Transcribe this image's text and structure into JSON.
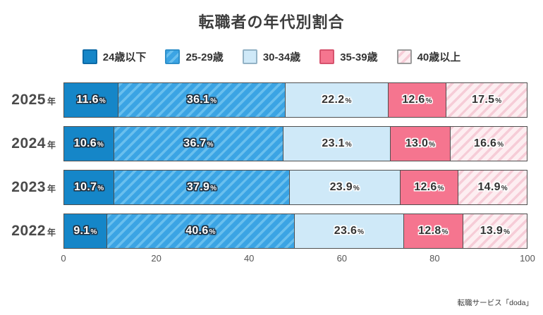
{
  "title": "転職者の年代別割合",
  "source": "転職サービス「doda」",
  "colors": {
    "bar_border": "#4f4f4f",
    "label_outline_dark": "#20303f",
    "label_outline_light": "#ffffff",
    "axis_text": "#555555",
    "year_text": "#4a4a4a",
    "title_text": "#3d3d3d"
  },
  "chart_data": {
    "type": "bar",
    "stacked": true,
    "orientation": "horizontal",
    "title": "転職者の年代別割合",
    "categories": [
      "2025",
      "2024",
      "2023",
      "2022"
    ],
    "category_suffix": "年",
    "value_suffix": "%",
    "xlim": [
      0,
      100
    ],
    "x_ticks": [
      0,
      20,
      40,
      60,
      80,
      100
    ],
    "legend_position": "top",
    "grid": false,
    "series": [
      {
        "name": "24歳以下",
        "values": [
          11.6,
          10.6,
          10.7,
          9.1
        ],
        "color": "#1586c8",
        "pattern": "solid",
        "swatch_border": "#0d6aa6",
        "text_style": "light"
      },
      {
        "name": "25-29歳",
        "values": [
          36.1,
          36.7,
          37.9,
          40.6
        ],
        "color": "#3ba4e4",
        "stripe_color": "#69bfee",
        "pattern": "stripes",
        "swatch_border": "#2e8fc9",
        "text_style": "light"
      },
      {
        "name": "30-34歳",
        "values": [
          22.2,
          23.1,
          23.9,
          23.6
        ],
        "color": "#cfe9f8",
        "pattern": "solid",
        "swatch_border": "#93b3c6",
        "text_style": "dark"
      },
      {
        "name": "35-39歳",
        "values": [
          12.6,
          13.0,
          12.6,
          12.8
        ],
        "color": "#f5758f",
        "pattern": "solid",
        "swatch_border": "#d6536e",
        "text_style": "dark"
      },
      {
        "name": "40歳以上",
        "values": [
          17.5,
          16.6,
          14.9,
          13.9
        ],
        "color": "#fdeef1",
        "stripe_color": "#f6ccd7",
        "pattern": "stripes",
        "swatch_border": "#9a9a9a",
        "text_style": "dark"
      }
    ]
  }
}
